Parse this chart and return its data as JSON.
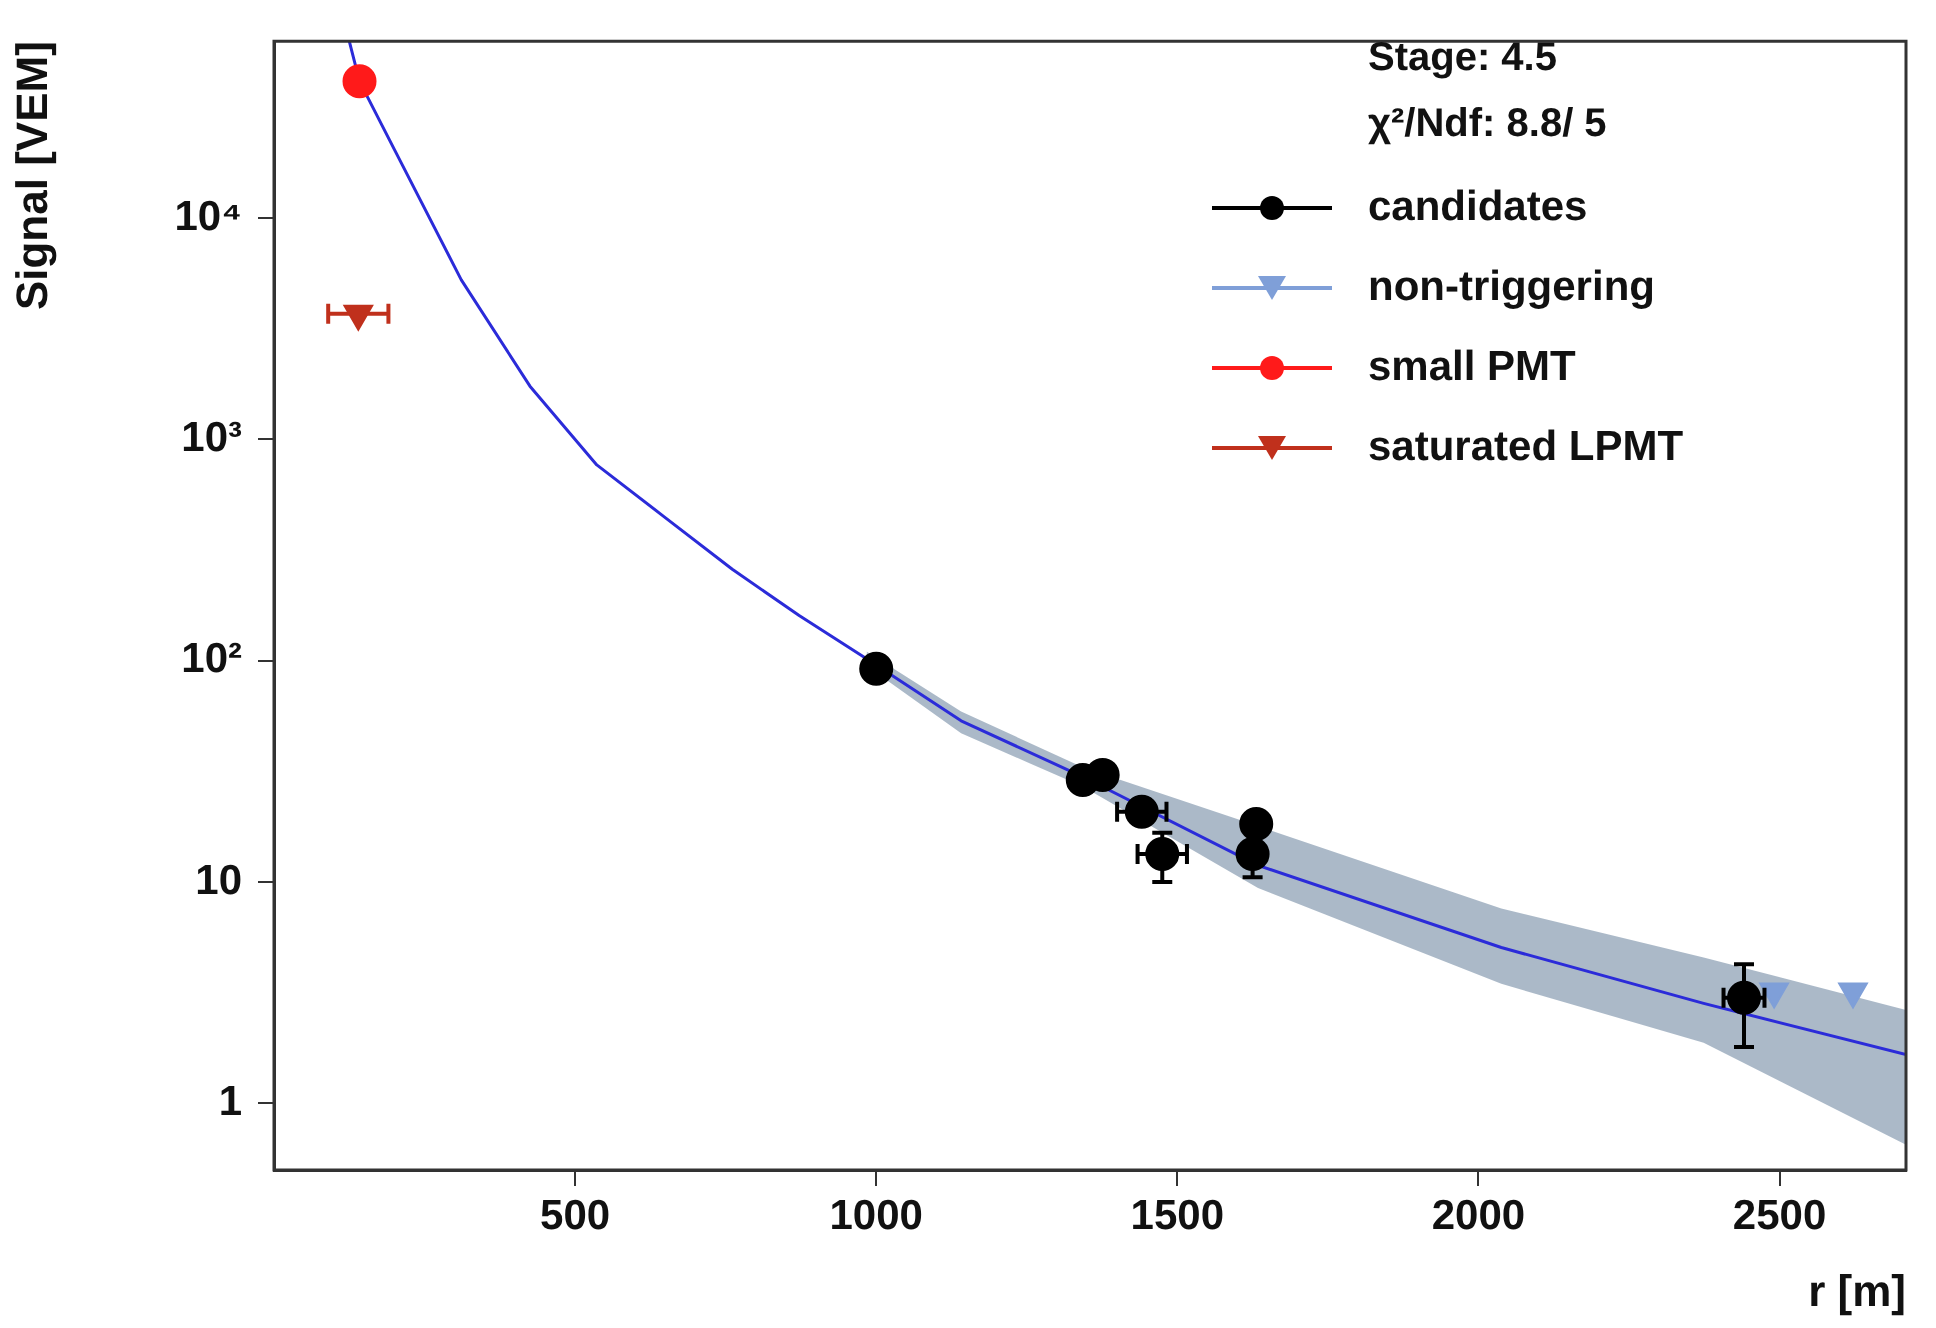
{
  "chart_data": {
    "type": "scatter",
    "xlabel": "r [m]",
    "ylabel": "Signal [VEM]",
    "xlim": [
      0,
      2710
    ],
    "xticks": [
      500,
      1000,
      1500,
      2000,
      2500
    ],
    "ylim": [
      0.5,
      63000
    ],
    "yticks": [
      1,
      10,
      {
        "value": 100,
        "label": "10²"
      },
      {
        "value": 1000,
        "label": "10³"
      },
      {
        "value": 10000,
        "label": "10⁴"
      }
    ],
    "log": "y",
    "grid": false,
    "legend": "top right",
    "annotations": [
      "Stage: 4.5",
      "χ²/Ndf: 8.8/ 5"
    ],
    "series": [
      {
        "type": "line",
        "color": "#2b2bd9",
        "marker": "none",
        "x": [
          125,
          142,
          200,
          311,
          425,
          536,
          648,
          761,
          872,
          984,
          1141,
          1343,
          1634,
          2038,
          2374,
          2710
        ],
        "values": [
          63000,
          41500,
          20400,
          5260,
          1740,
          767,
          447,
          259,
          160,
          102,
          53.5,
          29.9,
          11.9,
          5.06,
          2.83,
          1.66
        ],
        "lower": [
          null,
          null,
          null,
          null,
          null,
          null,
          null,
          null,
          null,
          95,
          47,
          27,
          9.4,
          3.47,
          1.88,
          0.65
        ],
        "upper": [
          null,
          null,
          null,
          null,
          null,
          null,
          null,
          null,
          null,
          110,
          59,
          33,
          17.9,
          7.6,
          4.56,
          2.64
        ]
      },
      {
        "name": "candidates",
        "color": "#000000",
        "marker": "circle",
        "x": [
          1000,
          1343,
          1376,
          1441,
          1475,
          1625,
          1628,
          1631,
          2441
        ],
        "values": [
          92,
          28.9,
          30.5,
          20.8,
          13.4,
          13.4,
          null,
          18.3,
          3.0
        ],
        "errors": [
          null,
          null,
          null,
          [
            18.5,
            23.5
          ],
          [
            10.0,
            16.7
          ],
          [
            10.5,
            13.4
          ],
          null,
          null,
          [
            1.8,
            4.25
          ]
        ],
        "xerrors": [
          null,
          null,
          null,
          41,
          41,
          null,
          null,
          null,
          34
        ]
      },
      {
        "name": "non-triggering",
        "color": "#7f9fd8",
        "marker": "triangle",
        "x": [
          2491,
          2622
        ],
        "values": [
          3.2,
          3.2
        ]
      },
      {
        "name": "small PMT",
        "color": "#ff1a1a",
        "marker": "circle",
        "x": [
          142
        ],
        "values": [
          41500
        ]
      },
      {
        "name": "saturated LPMT",
        "color": "#c0301c",
        "marker": "triangle",
        "x": [
          140
        ],
        "values": [
          3700
        ],
        "xerrors": [
          50
        ]
      }
    ]
  }
}
